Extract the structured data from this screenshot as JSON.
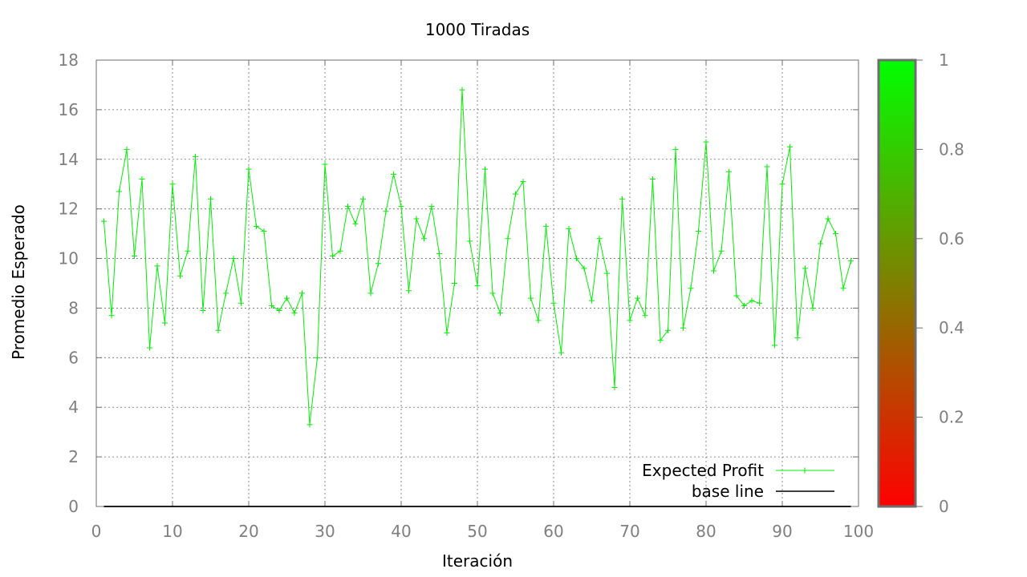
{
  "chart_data": {
    "type": "line",
    "title": "1000 Tiradas",
    "xlabel": "Iteración",
    "ylabel": "Promedio Esperado",
    "xlim": [
      0,
      100
    ],
    "ylim": [
      0,
      18
    ],
    "x_ticks": [
      "0",
      "10",
      "20",
      "30",
      "40",
      "50",
      "60",
      "70",
      "80",
      "90",
      "100"
    ],
    "y_ticks": [
      "0",
      "2",
      "4",
      "6",
      "8",
      "10",
      "12",
      "14",
      "16",
      "18"
    ],
    "grid": true,
    "legend_position": "bottom-right",
    "series": [
      {
        "name": "Expected Profit",
        "color": "#00ee00",
        "marker": "plus",
        "x": [
          1,
          2,
          3,
          4,
          5,
          6,
          7,
          8,
          9,
          10,
          11,
          12,
          13,
          14,
          15,
          16,
          17,
          18,
          19,
          20,
          21,
          22,
          23,
          24,
          25,
          26,
          27,
          28,
          29,
          30,
          31,
          32,
          33,
          34,
          35,
          36,
          37,
          38,
          39,
          40,
          41,
          42,
          43,
          44,
          45,
          46,
          47,
          48,
          49,
          50,
          51,
          52,
          53,
          54,
          55,
          56,
          57,
          58,
          59,
          60,
          61,
          62,
          63,
          64,
          65,
          66,
          67,
          68,
          69,
          70,
          71,
          72,
          73,
          74,
          75,
          76,
          77,
          78,
          79,
          80,
          81,
          82,
          83,
          84,
          85,
          86,
          87,
          88,
          89,
          90,
          91,
          92,
          93,
          94,
          95,
          96,
          97,
          98,
          99
        ],
        "y": [
          11.5,
          7.7,
          12.7,
          14.4,
          10.1,
          13.2,
          6.4,
          9.7,
          7.4,
          13.0,
          9.3,
          10.3,
          14.1,
          7.9,
          12.4,
          7.1,
          8.6,
          10.0,
          8.2,
          13.6,
          11.3,
          11.1,
          8.1,
          7.9,
          8.4,
          7.8,
          8.6,
          3.3,
          6.0,
          13.8,
          10.1,
          10.3,
          12.1,
          11.4,
          12.4,
          8.6,
          9.8,
          11.9,
          13.4,
          12.1,
          8.7,
          11.6,
          10.8,
          12.1,
          10.2,
          7.0,
          9.0,
          16.8,
          10.7,
          8.9,
          13.6,
          8.6,
          7.8,
          10.8,
          12.6,
          13.1,
          8.4,
          7.5,
          11.3,
          8.2,
          6.2,
          11.2,
          10.0,
          9.6,
          8.3,
          10.8,
          9.4,
          4.8,
          12.4,
          7.5,
          8.4,
          7.7,
          13.2,
          6.7,
          7.1,
          14.4,
          7.2,
          8.8,
          11.1,
          14.7,
          9.5,
          10.3,
          13.5,
          8.5,
          8.1,
          8.3,
          8.2,
          13.7,
          6.5,
          13.0,
          14.5,
          6.8,
          9.6,
          8.0,
          10.6,
          11.6,
          11.0,
          8.8,
          9.9
        ]
      },
      {
        "name": "base line",
        "color": "#000000",
        "x": [
          1,
          99
        ],
        "y": [
          0,
          0
        ]
      }
    ],
    "colorbar": {
      "range": [
        0,
        1
      ],
      "ticks": [
        "0",
        "0.2",
        "0.4",
        "0.6",
        "0.8",
        "1"
      ],
      "low_color": "#ff0000",
      "high_color": "#00ff00"
    }
  }
}
